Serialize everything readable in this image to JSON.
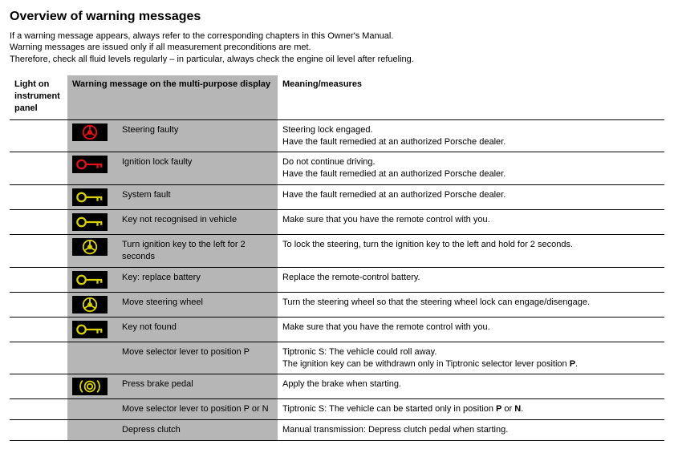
{
  "title": "Overview of warning messages",
  "intro": [
    "If a warning message appears, always refer to the corresponding chapters in this Owner's Manual.",
    "Warning messages are issued only if all measurement preconditions are met.",
    "Therefore, check all fluid levels regularly – in particular, always check the engine oil level after refueling."
  ],
  "headers": {
    "col1": "Light on instrument panel",
    "col23": "Warning message on the multi-purpose display",
    "col4": "Meaning/measures"
  },
  "colors": {
    "red": "#e40f18",
    "yellow": "#d8d100",
    "black": "#000000",
    "grey": "#b6b6b6"
  },
  "rows": [
    {
      "icon": "steering",
      "iconColor": "#e40f18",
      "msg": "Steering faulty",
      "meaning": "Steering lock engaged.\nHave the fault remedied at an authorized Porsche dealer."
    },
    {
      "icon": "key",
      "iconColor": "#e40f18",
      "msg": "Ignition lock faulty",
      "meaning": "Do not continue driving.\nHave the fault remedied at an authorized Porsche dealer."
    },
    {
      "icon": "key",
      "iconColor": "#d8d100",
      "msg": "System fault",
      "meaning": "Have the fault remedied at an authorized Porsche dealer."
    },
    {
      "icon": "key",
      "iconColor": "#d8d100",
      "msg": "Key not recognised in vehicle",
      "meaning": "Make sure that you have the remote control with you."
    },
    {
      "icon": "steering",
      "iconColor": "#d8d100",
      "msg": "Turn ignition key to the left for 2 seconds",
      "meaning": "To lock the steering, turn the ignition key to the left and hold for 2 seconds."
    },
    {
      "icon": "key",
      "iconColor": "#d8d100",
      "msg": "Key: replace battery",
      "meaning": "Replace the remote-control battery."
    },
    {
      "icon": "steering",
      "iconColor": "#d8d100",
      "msg": "Move steering wheel",
      "meaning": "Turn the steering wheel so that the steering wheel lock can engage/disengage."
    },
    {
      "icon": "key",
      "iconColor": "#d8d100",
      "msg": "Key not found",
      "meaning": "Make sure that you have the remote control with you."
    },
    {
      "icon": null,
      "iconColor": null,
      "msg": "Move selector lever to position P",
      "meaning": "Tiptronic S: The vehicle could roll away.\nThe ignition key can be withdrawn only in Tiptronic selector lever position P.",
      "boldTail": "P"
    },
    {
      "icon": "brake",
      "iconColor": "#d8d100",
      "msg": "Press brake pedal",
      "meaning": "Apply the brake when starting."
    },
    {
      "icon": null,
      "iconColor": null,
      "msg": "Move selector lever to position P or N",
      "meaning": "Tiptronic S: The vehicle can be started only in position P or N.",
      "boldTail2": [
        "P",
        "N"
      ]
    },
    {
      "icon": null,
      "iconColor": null,
      "msg": "Depress clutch",
      "meaning": "Manual transmission: Depress clutch pedal when starting."
    }
  ]
}
